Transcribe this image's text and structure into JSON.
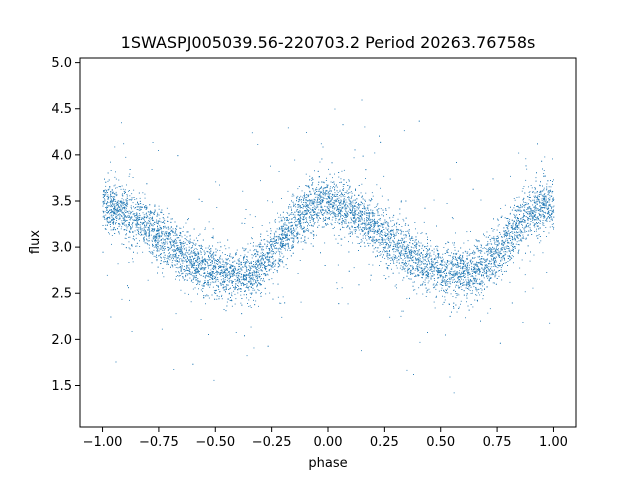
{
  "chart_data": {
    "type": "scatter",
    "title": "1SWASPJ005039.56-220703.2 Period 20263.76758s",
    "xlabel": "phase",
    "ylabel": "flux",
    "xlim": [
      -1.1,
      1.1
    ],
    "ylim": [
      1.05,
      5.05
    ],
    "x_ticks": [
      -1.0,
      -0.75,
      -0.5,
      -0.25,
      0.0,
      0.25,
      0.5,
      0.75,
      1.0
    ],
    "x_tick_labels": [
      "−1.00",
      "−0.75",
      "−0.50",
      "−0.25",
      "0.00",
      "0.25",
      "0.50",
      "0.75",
      "1.00"
    ],
    "y_ticks": [
      1.5,
      2.0,
      2.5,
      3.0,
      3.5,
      4.0,
      4.5,
      5.0
    ],
    "y_tick_labels": [
      "1.5",
      "2.0",
      "2.5",
      "3.0",
      "3.5",
      "4.0",
      "4.5",
      "5.0"
    ],
    "grid": false,
    "marker_color": "#1f77b4",
    "series": [
      {
        "x": [
          -1.0,
          -0.95,
          -0.9,
          -0.85,
          -0.8,
          -0.75,
          -0.7,
          -0.65,
          -0.6,
          -0.55,
          -0.5,
          -0.45,
          -0.4,
          -0.35,
          -0.3,
          -0.25,
          -0.2,
          -0.15,
          -0.1,
          -0.05,
          0.0,
          0.05,
          0.1,
          0.15,
          0.2,
          0.25,
          0.3,
          0.35,
          0.4,
          0.45,
          0.5,
          0.55,
          0.6,
          0.65,
          0.7,
          0.75,
          0.8,
          0.85,
          0.9,
          0.95,
          1.0
        ],
        "y": [
          3.45,
          3.43,
          3.38,
          3.3,
          3.22,
          3.13,
          3.04,
          2.94,
          2.85,
          2.78,
          2.73,
          2.7,
          2.7,
          2.73,
          2.8,
          2.93,
          3.1,
          3.27,
          3.4,
          3.47,
          3.47,
          3.43,
          3.38,
          3.3,
          3.22,
          3.13,
          3.04,
          2.94,
          2.85,
          2.78,
          2.73,
          2.7,
          2.7,
          2.73,
          2.8,
          2.93,
          3.1,
          3.27,
          3.4,
          3.47,
          3.45
        ]
      }
    ]
  }
}
